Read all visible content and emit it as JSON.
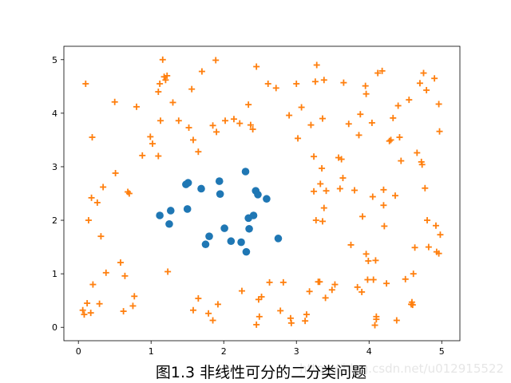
{
  "chart_data": {
    "type": "scatter",
    "title": "",
    "xlabel": "",
    "ylabel": "",
    "xlim": [
      -0.2,
      5.25
    ],
    "ylim": [
      -0.25,
      5.25
    ],
    "xticks": [
      "0",
      "1",
      "2",
      "3",
      "4",
      "5"
    ],
    "yticks": [
      "0",
      "1",
      "2",
      "3",
      "4",
      "5"
    ],
    "grid": false,
    "series": [
      {
        "marker": "circle",
        "color": "#1f77b4",
        "points": [
          [
            1.12,
            2.09
          ],
          [
            1.27,
            2.18
          ],
          [
            1.25,
            1.93
          ],
          [
            1.48,
            2.67
          ],
          [
            1.51,
            2.7
          ],
          [
            1.5,
            2.21
          ],
          [
            1.69,
            2.59
          ],
          [
            1.75,
            1.55
          ],
          [
            1.8,
            1.7
          ],
          [
            1.94,
            2.73
          ],
          [
            1.95,
            2.49
          ],
          [
            2.01,
            1.85
          ],
          [
            2.1,
            1.61
          ],
          [
            2.24,
            1.59
          ],
          [
            2.3,
            2.91
          ],
          [
            2.31,
            1.41
          ],
          [
            2.34,
            2.04
          ],
          [
            2.35,
            1.84
          ],
          [
            2.41,
            2.09
          ],
          [
            2.44,
            2.55
          ],
          [
            2.47,
            2.48
          ],
          [
            2.59,
            2.4
          ],
          [
            2.75,
            1.66
          ]
        ]
      },
      {
        "marker": "plus",
        "color": "#ff7f0e",
        "points": [
          [
            0.06,
            0.32
          ],
          [
            0.08,
            0.24
          ],
          [
            0.1,
            4.55
          ],
          [
            0.12,
            0.45
          ],
          [
            0.14,
            2.0
          ],
          [
            0.17,
            0.27
          ],
          [
            0.18,
            2.42
          ],
          [
            0.19,
            3.55
          ],
          [
            0.2,
            0.8
          ],
          [
            0.26,
            2.33
          ],
          [
            0.29,
            0.44
          ],
          [
            0.31,
            1.7
          ],
          [
            0.34,
            2.62
          ],
          [
            0.38,
            1.02
          ],
          [
            0.5,
            4.21
          ],
          [
            0.51,
            2.88
          ],
          [
            0.58,
            1.21
          ],
          [
            0.62,
            0.3
          ],
          [
            0.64,
            0.96
          ],
          [
            0.68,
            2.53
          ],
          [
            0.7,
            2.5
          ],
          [
            0.75,
            0.4
          ],
          [
            0.77,
            0.58
          ],
          [
            0.8,
            4.12
          ],
          [
            0.88,
            3.21
          ],
          [
            0.99,
            3.56
          ],
          [
            1.02,
            3.43
          ],
          [
            1.1,
            3.2
          ],
          [
            1.1,
            4.4
          ],
          [
            1.12,
            4.55
          ],
          [
            1.13,
            3.86
          ],
          [
            1.16,
            5.0
          ],
          [
            1.18,
            4.68
          ],
          [
            1.2,
            4.62
          ],
          [
            1.22,
            4.7
          ],
          [
            1.23,
            1.04
          ],
          [
            1.3,
            4.2
          ],
          [
            1.38,
            3.86
          ],
          [
            1.52,
            3.73
          ],
          [
            1.56,
            4.45
          ],
          [
            1.58,
            3.5
          ],
          [
            1.58,
            0.32
          ],
          [
            1.65,
            3.28
          ],
          [
            1.65,
            0.54
          ],
          [
            1.7,
            4.78
          ],
          [
            1.79,
            0.26
          ],
          [
            1.85,
            3.77
          ],
          [
            1.85,
            0.13
          ],
          [
            1.89,
            4.99
          ],
          [
            1.9,
            3.65
          ],
          [
            1.92,
            0.43
          ],
          [
            2.02,
            3.86
          ],
          [
            2.14,
            3.89
          ],
          [
            2.22,
            3.81
          ],
          [
            2.25,
            0.68
          ],
          [
            2.34,
            4.16
          ],
          [
            2.37,
            3.78
          ],
          [
            2.4,
            3.7
          ],
          [
            2.45,
            4.87
          ],
          [
            2.45,
            0.05
          ],
          [
            2.48,
            0.52
          ],
          [
            2.49,
            0.2
          ],
          [
            2.52,
            0.57
          ],
          [
            2.61,
            4.55
          ],
          [
            2.63,
            0.84
          ],
          [
            2.72,
            4.47
          ],
          [
            2.78,
            0.31
          ],
          [
            2.82,
            0.84
          ],
          [
            2.9,
            3.96
          ],
          [
            2.92,
            0.17
          ],
          [
            2.93,
            0.08
          ],
          [
            3.0,
            4.55
          ],
          [
            3.02,
            3.53
          ],
          [
            3.07,
            4.11
          ],
          [
            3.12,
            0.12
          ],
          [
            3.14,
            0.24
          ],
          [
            3.18,
            0.67
          ],
          [
            3.2,
            3.78
          ],
          [
            3.24,
            3.19
          ],
          [
            3.24,
            2.54
          ],
          [
            3.26,
            4.59
          ],
          [
            3.28,
            4.9
          ],
          [
            3.27,
            2.0
          ],
          [
            3.3,
            0.85
          ],
          [
            3.32,
            0.85
          ],
          [
            3.33,
            2.68
          ],
          [
            3.35,
            2.97
          ],
          [
            3.36,
            1.98
          ],
          [
            3.36,
            3.9
          ],
          [
            3.38,
            2.23
          ],
          [
            3.38,
            4.62
          ],
          [
            3.4,
            0.55
          ],
          [
            3.41,
            2.55
          ],
          [
            3.49,
            0.7
          ],
          [
            3.53,
            0.8
          ],
          [
            3.58,
            3.17
          ],
          [
            3.6,
            2.59
          ],
          [
            3.62,
            3.14
          ],
          [
            3.64,
            2.79
          ],
          [
            3.65,
            4.57
          ],
          [
            3.72,
            3.8
          ],
          [
            3.75,
            1.54
          ],
          [
            3.8,
            2.56
          ],
          [
            3.84,
            0.75
          ],
          [
            3.86,
            3.59
          ],
          [
            3.88,
            3.98
          ],
          [
            3.9,
            0.66
          ],
          [
            3.91,
            2.07
          ],
          [
            3.95,
            4.51
          ],
          [
            3.96,
            4.36
          ],
          [
            3.96,
            1.37
          ],
          [
            3.98,
            0.89
          ],
          [
            3.99,
            1.24
          ],
          [
            4.04,
            3.82
          ],
          [
            4.05,
            2.44
          ],
          [
            4.06,
            0.89
          ],
          [
            4.08,
            0.04
          ],
          [
            4.09,
            1.25
          ],
          [
            4.1,
            0.15
          ],
          [
            4.1,
            0.2
          ],
          [
            4.12,
            4.75
          ],
          [
            4.18,
            4.79
          ],
          [
            4.2,
            2.57
          ],
          [
            4.2,
            2.28
          ],
          [
            4.21,
            1.89
          ],
          [
            4.24,
            0.82
          ],
          [
            4.28,
            3.48
          ],
          [
            4.3,
            3.5
          ],
          [
            4.33,
            3.91
          ],
          [
            4.36,
            2.46
          ],
          [
            4.38,
            0.13
          ],
          [
            4.4,
            4.14
          ],
          [
            4.42,
            3.55
          ],
          [
            4.44,
            3.11
          ],
          [
            4.5,
            0.9
          ],
          [
            4.55,
            4.25
          ],
          [
            4.58,
            0.43
          ],
          [
            4.59,
            0.47
          ],
          [
            4.6,
            0.42
          ],
          [
            4.61,
            1.0
          ],
          [
            4.63,
            1.49
          ],
          [
            4.66,
            3.26
          ],
          [
            4.7,
            4.56
          ],
          [
            4.72,
            3.09
          ],
          [
            4.73,
            3.04
          ],
          [
            4.75,
            4.75
          ],
          [
            4.77,
            2.6
          ],
          [
            4.79,
            4.43
          ],
          [
            4.8,
            2.0
          ],
          [
            4.82,
            1.5
          ],
          [
            4.9,
            4.65
          ],
          [
            4.92,
            1.9
          ],
          [
            4.93,
            1.41
          ],
          [
            4.96,
            4.17
          ],
          [
            4.96,
            1.38
          ],
          [
            4.97,
            3.66
          ],
          [
            4.98,
            1.73
          ]
        ]
      }
    ]
  },
  "caption": "图1.3 非线性可分的二分类问题",
  "watermark": "https://blog.csdn.net/u012915522"
}
